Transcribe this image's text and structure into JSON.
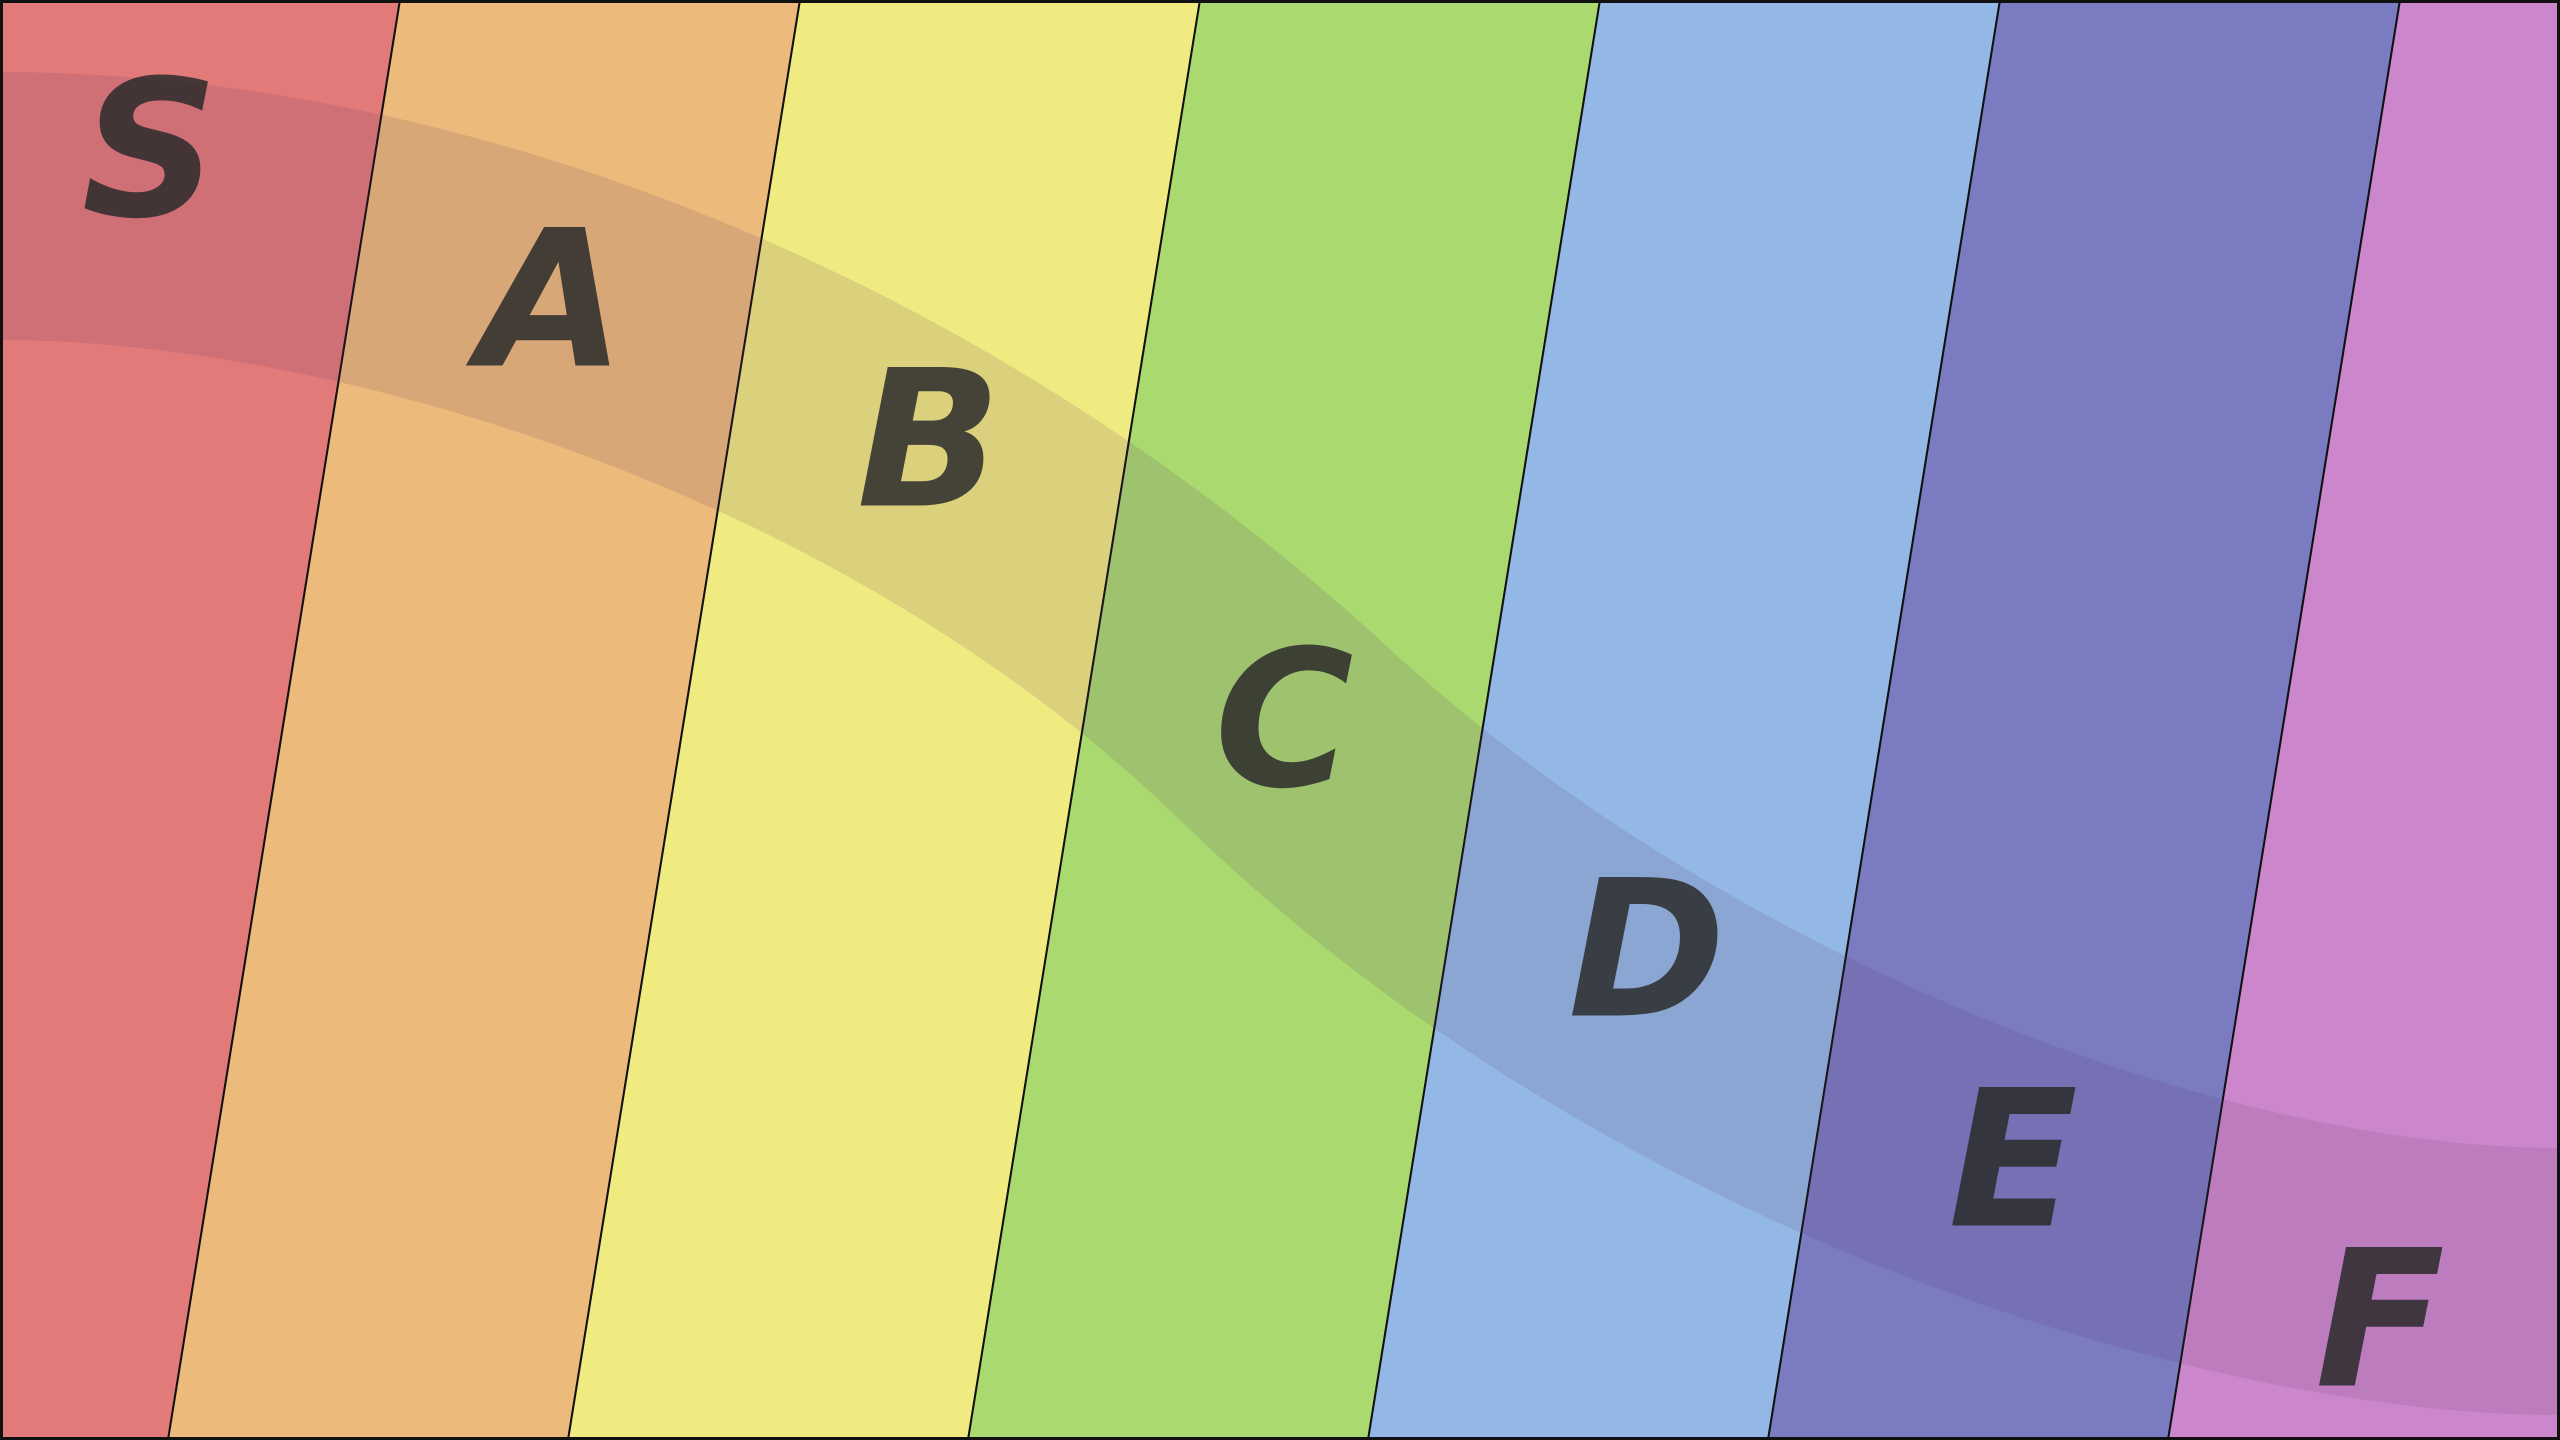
{
  "tiers": [
    {
      "label": "S",
      "color": "#e27a7a"
    },
    {
      "label": "A",
      "color": "#ecba7b"
    },
    {
      "label": "B",
      "color": "#f0eb81"
    },
    {
      "label": "C",
      "color": "#aad96f"
    },
    {
      "label": "D",
      "color": "#94b8e6"
    },
    {
      "label": "E",
      "color": "#7b7bc1"
    },
    {
      "label": "F",
      "color": "#cc87cc"
    }
  ],
  "band_color": "#5a3a6a",
  "letter_color": "#2a2a2a",
  "border_color": "#111111"
}
